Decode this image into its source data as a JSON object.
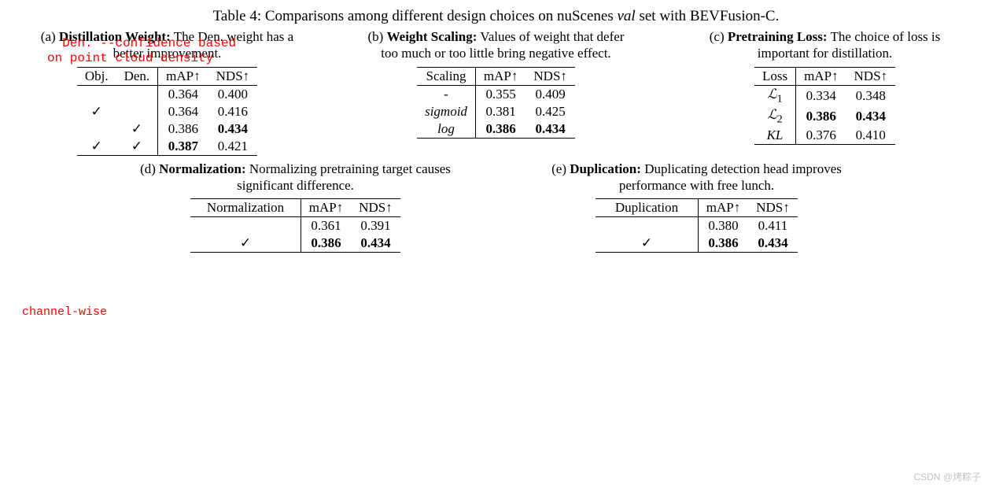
{
  "title_prefix": "Table 4: Comparisons among different design choices on nuScenes ",
  "title_italic": "val",
  "title_suffix": " set with BEVFusion-C.",
  "annot1_line1": "Den. --confidence based",
  "annot1_line2": "on point cloud density",
  "annot2": "channel-wise",
  "watermark": "CSDN @烤粽子",
  "metrics": {
    "map": "mAP↑",
    "nds": "NDS↑"
  },
  "panel_a": {
    "letter": "(a) ",
    "head_bold": "Distillation Weight:",
    "head_rest": " The Den. weight has a better improvement.",
    "col_obj": "Obj.",
    "col_den": "Den.",
    "rows": [
      {
        "obj": "",
        "den": "",
        "map": "0.364",
        "nds": "0.400",
        "mb": false,
        "nb": false
      },
      {
        "obj": "✓",
        "den": "",
        "map": "0.364",
        "nds": "0.416",
        "mb": false,
        "nb": false
      },
      {
        "obj": "",
        "den": "✓",
        "map": "0.386",
        "nds": "0.434",
        "mb": false,
        "nb": true
      },
      {
        "obj": "✓",
        "den": "✓",
        "map": "0.387",
        "nds": "0.421",
        "mb": true,
        "nb": false
      }
    ]
  },
  "panel_b": {
    "letter": "(b) ",
    "head_bold": "Weight Scaling:",
    "head_rest": " Values of weight that defer too much or too little bring negative effect.",
    "col": "Scaling",
    "rows": [
      {
        "label": "-",
        "italic": false,
        "map": "0.355",
        "nds": "0.409",
        "mb": false,
        "nb": false
      },
      {
        "label": "sigmoid",
        "italic": true,
        "map": "0.381",
        "nds": "0.425",
        "mb": false,
        "nb": false
      },
      {
        "label": "log",
        "italic": true,
        "map": "0.386",
        "nds": "0.434",
        "mb": true,
        "nb": true
      }
    ]
  },
  "panel_c": {
    "letter": "(c) ",
    "head_bold": "Pretraining Loss:",
    "head_rest": " The choice of loss is important for distillation.",
    "col": "Loss",
    "rows": [
      {
        "label": "ℒ",
        "sub": "1",
        "map": "0.334",
        "nds": "0.348",
        "mb": false,
        "nb": false
      },
      {
        "label": "ℒ",
        "sub": "2",
        "map": "0.386",
        "nds": "0.434",
        "mb": true,
        "nb": true
      },
      {
        "label": "KL",
        "sub": "",
        "map": "0.376",
        "nds": "0.410",
        "mb": false,
        "nb": false
      }
    ]
  },
  "panel_d": {
    "letter": "(d) ",
    "head_bold": "Normalization:",
    "head_rest": " Normalizing pretraining target causes significant difference.",
    "col": "Normalization",
    "rows": [
      {
        "chk": "",
        "map": "0.361",
        "nds": "0.391",
        "mb": false,
        "nb": false
      },
      {
        "chk": "✓",
        "map": "0.386",
        "nds": "0.434",
        "mb": true,
        "nb": true
      }
    ]
  },
  "panel_e": {
    "letter": "(e) ",
    "head_bold": "Duplication:",
    "head_rest": " Duplicating detection head improves performance with free lunch.",
    "col": "Duplication",
    "rows": [
      {
        "chk": "",
        "map": "0.380",
        "nds": "0.411",
        "mb": false,
        "nb": false
      },
      {
        "chk": "✓",
        "map": "0.386",
        "nds": "0.434",
        "mb": true,
        "nb": true
      }
    ]
  }
}
